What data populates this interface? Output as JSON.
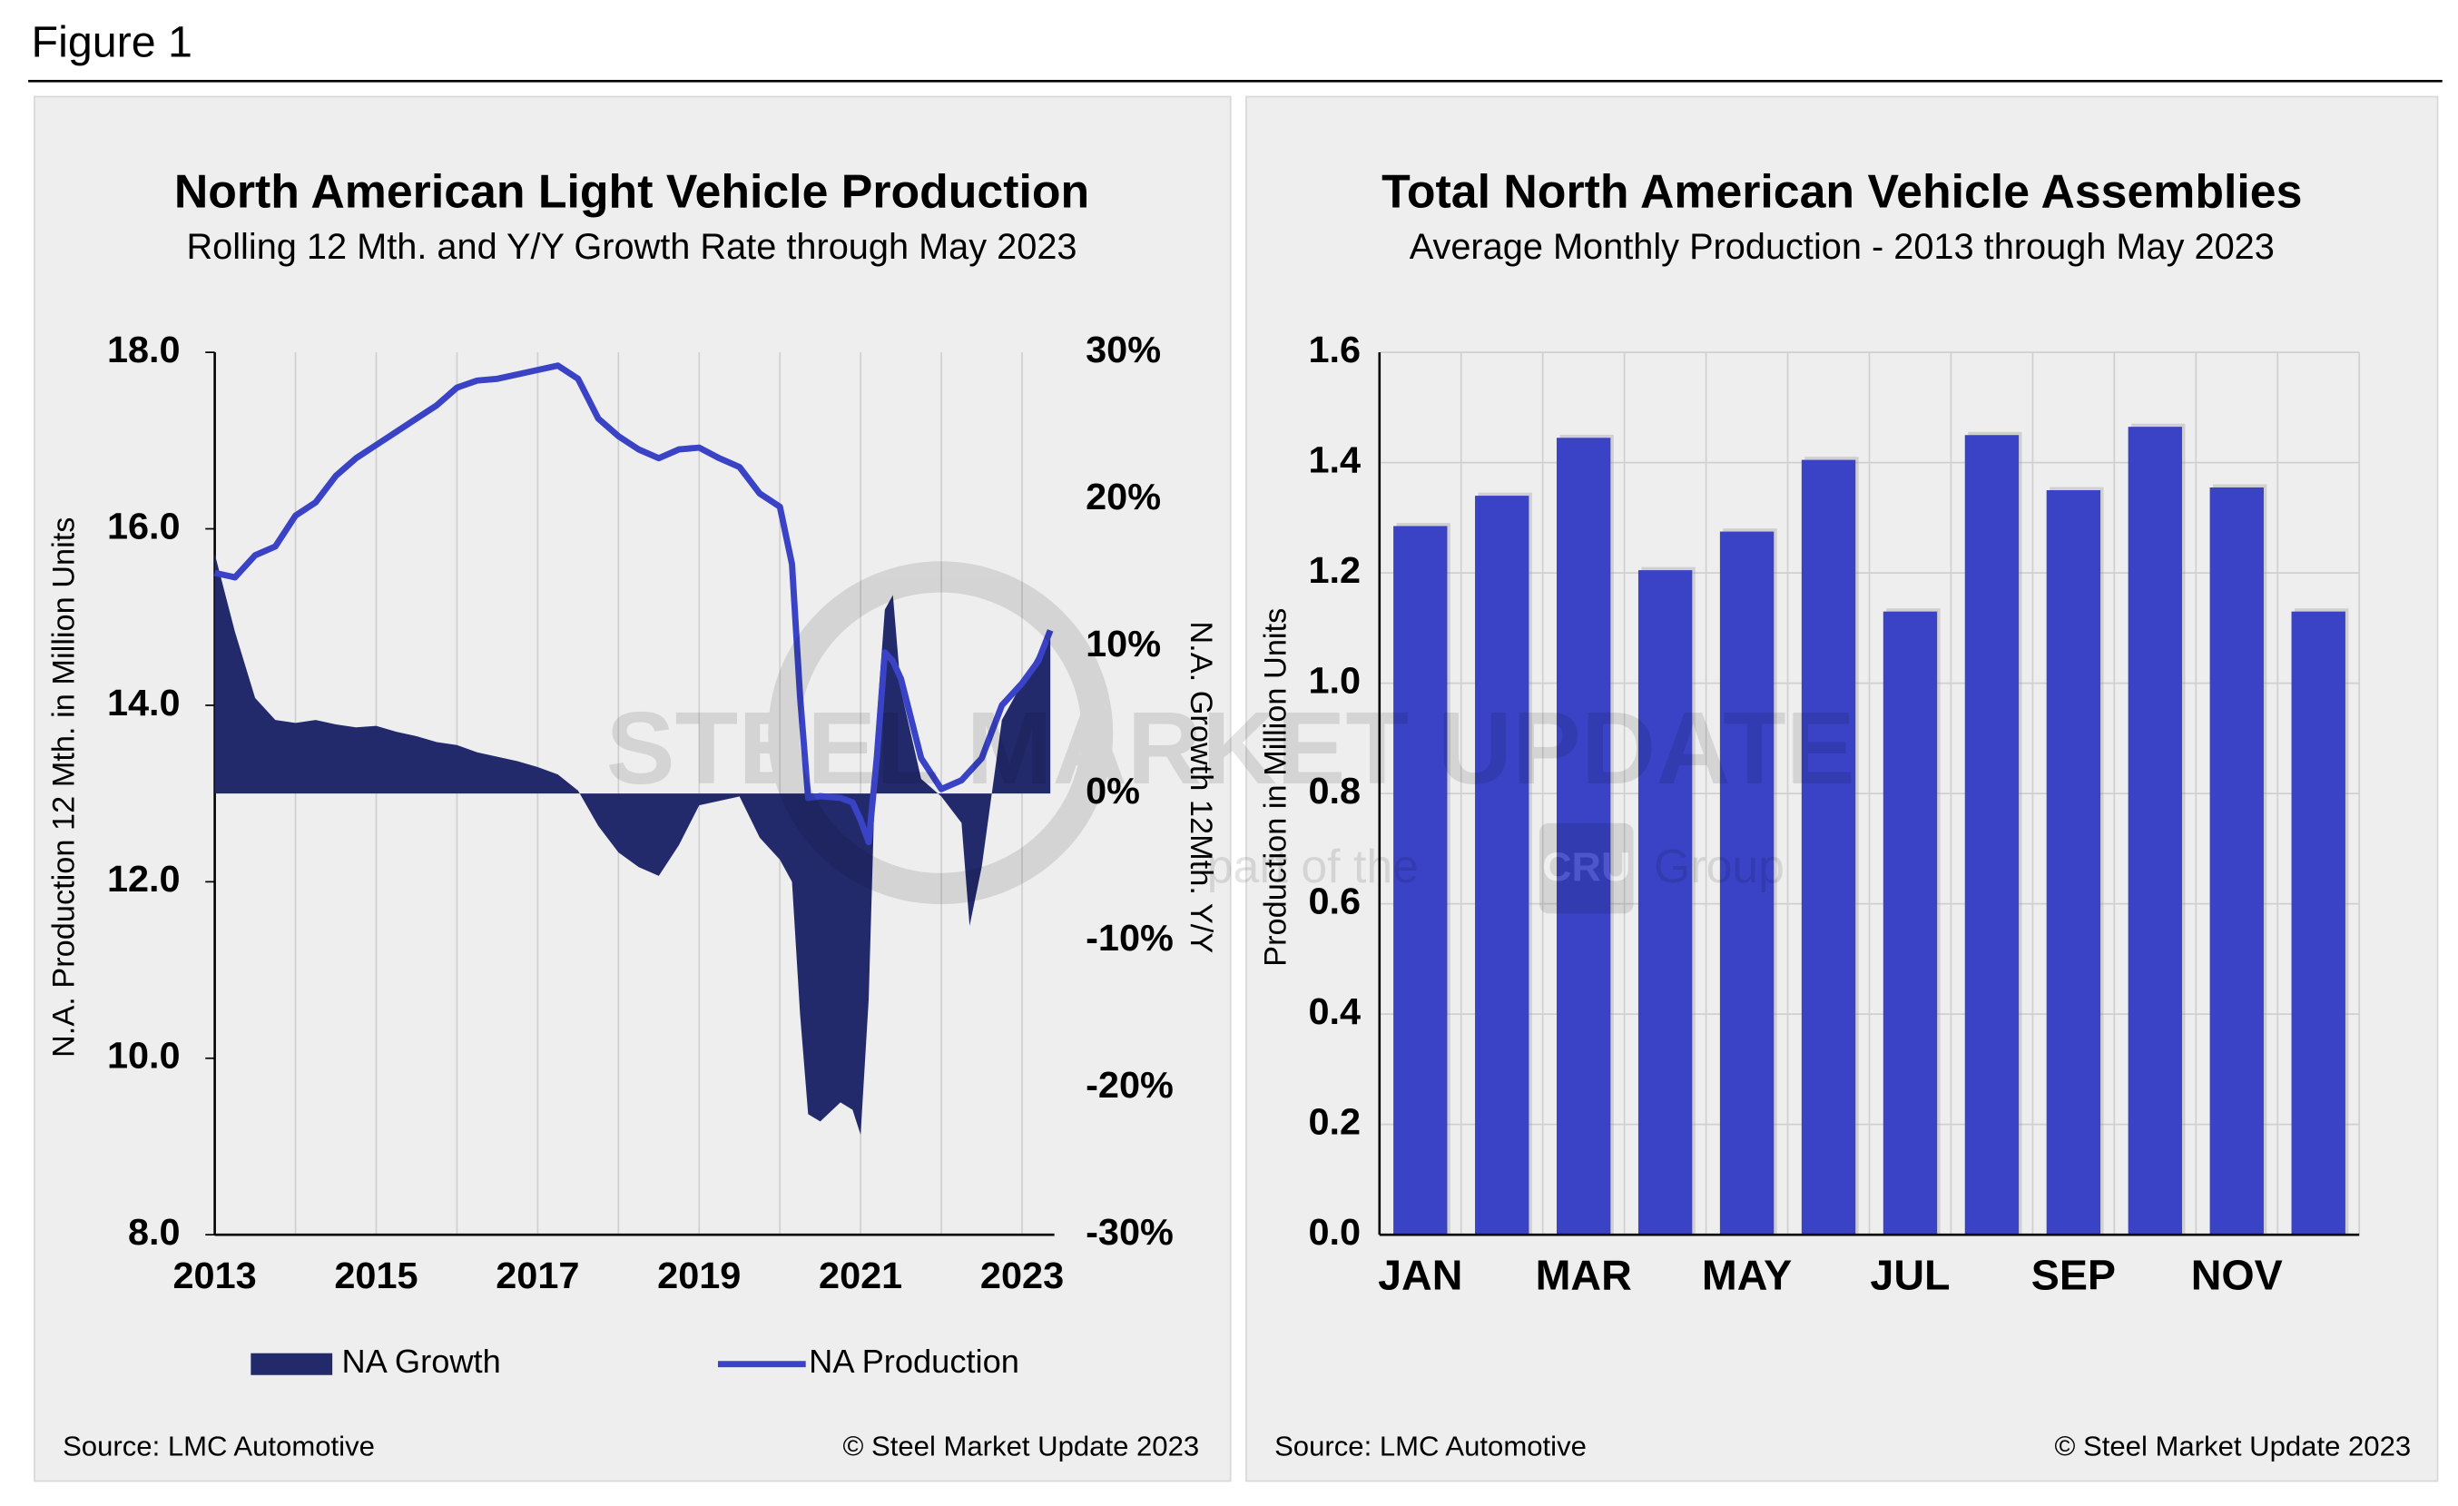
{
  "header": {
    "figure": "Figure 1"
  },
  "watermark": {
    "title": "STEEL MARKET UPDATE",
    "prefix": "part of the",
    "brand": "CRU",
    "suffix": "Group"
  },
  "chart_data": [
    {
      "type": "line",
      "title": "North American Light Vehicle Production",
      "subtitle": "Rolling 12 Mth. and Y/Y Growth Rate through May 2023",
      "y_label": "N.A. Production 12 Mth. in Million Units",
      "y2_label": "N.A. Growth 12Mth. Y/Y",
      "source": "Source: LMC Automotive",
      "copyright": "© Steel Market Update 2023",
      "x": [
        2013.0,
        2013.25,
        2013.5,
        2013.75,
        2014.0,
        2014.25,
        2014.5,
        2014.75,
        2015.0,
        2015.25,
        2015.5,
        2015.75,
        2016.0,
        2016.25,
        2016.5,
        2016.75,
        2017.0,
        2017.25,
        2017.5,
        2017.75,
        2018.0,
        2018.25,
        2018.5,
        2018.75,
        2019.0,
        2019.25,
        2019.5,
        2019.75,
        2020.0,
        2020.15,
        2020.25,
        2020.35,
        2020.5,
        2020.75,
        2020.9,
        2021.0,
        2021.1,
        2021.2,
        2021.3,
        2021.4,
        2021.5,
        2021.75,
        2022.0,
        2022.25,
        2022.35,
        2022.5,
        2022.75,
        2023.0,
        2023.2,
        2023.35
      ],
      "xlim": [
        2013,
        2023.4
      ],
      "xticks": [
        2013,
        2015,
        2017,
        2019,
        2021,
        2023
      ],
      "xminor": [
        2014,
        2016,
        2018,
        2020,
        2022
      ],
      "ylim": [
        8,
        18
      ],
      "yticks": [
        {
          "value": 8,
          "label": "8.0"
        },
        {
          "value": 10,
          "label": "10.0"
        },
        {
          "value": 12,
          "label": "12.0"
        },
        {
          "value": 14,
          "label": "14.0"
        },
        {
          "value": 16,
          "label": "16.0"
        },
        {
          "value": 18,
          "label": "18.0"
        }
      ],
      "y2lim": [
        -30,
        30
      ],
      "y2ticks": [
        {
          "value": -30,
          "label": "-30%"
        },
        {
          "value": -20,
          "label": "-20%"
        },
        {
          "value": -10,
          "label": "-10%"
        },
        {
          "value": 0,
          "label": "0%"
        },
        {
          "value": 10,
          "label": "10%"
        },
        {
          "value": 20,
          "label": "20%"
        },
        {
          "value": 30,
          "label": "30%"
        }
      ],
      "series": [
        {
          "name": "NA Growth",
          "type": "area",
          "axis": "y2",
          "color": "#232a6c",
          "values": [
            16.3,
            11,
            6.5,
            5.0,
            4.8,
            5.0,
            4.7,
            4.5,
            4.6,
            4.2,
            3.9,
            3.5,
            3.3,
            2.8,
            2.5,
            2.2,
            1.8,
            1.3,
            0.2,
            -2.2,
            -4.0,
            -5.0,
            -5.6,
            -3.5,
            -0.8,
            -0.5,
            -0.2,
            -3.0,
            -4.5,
            -6.0,
            -15,
            -21.8,
            -22.3,
            -21.0,
            -21.5,
            -23.2,
            -14,
            5,
            12.5,
            13.5,
            7,
            1.0,
            -0.2,
            -2,
            -9.0,
            -5,
            5.0,
            7.5,
            9.5,
            10.5
          ]
        },
        {
          "name": "NA Production",
          "type": "line",
          "color": "#3a43c6",
          "values": [
            15.5,
            15.45,
            15.7,
            15.8,
            16.15,
            16.3,
            16.6,
            16.8,
            16.95,
            17.1,
            17.25,
            17.4,
            17.6,
            17.68,
            17.7,
            17.75,
            17.8,
            17.85,
            17.7,
            17.25,
            17.05,
            16.9,
            16.8,
            16.9,
            16.92,
            16.8,
            16.7,
            16.4,
            16.25,
            15.6,
            14.1,
            12.95,
            12.97,
            12.95,
            12.9,
            12.7,
            12.45,
            13.4,
            14.6,
            14.5,
            14.3,
            13.4,
            13.05,
            13.15,
            13.25,
            13.4,
            14.0,
            14.25,
            14.5,
            14.85
          ]
        }
      ]
    },
    {
      "type": "bar",
      "title": "Total North American Vehicle Assemblies",
      "subtitle": "Average Monthly Production - 2013 through May 2023",
      "y_label": "Production in Million Units",
      "source": "Source: LMC Automotive",
      "copyright": "© Steel Market Update 2023",
      "categories": [
        "JAN",
        null,
        "MAR",
        null,
        "MAY",
        null,
        "JUL",
        null,
        "SEP",
        null,
        "NOV",
        null
      ],
      "values": [
        1.285,
        1.34,
        1.445,
        1.205,
        1.275,
        1.405,
        1.13,
        1.45,
        1.35,
        1.465,
        1.355,
        1.13
      ],
      "color": "#3a43c6",
      "ylim": [
        0,
        1.6
      ],
      "yticks": [
        {
          "value": 0,
          "label": "0.0"
        },
        {
          "value": 0.2,
          "label": "0.2"
        },
        {
          "value": 0.4,
          "label": "0.4"
        },
        {
          "value": 0.6,
          "label": "0.6"
        },
        {
          "value": 0.8,
          "label": "0.8"
        },
        {
          "value": 1.0,
          "label": "1.0"
        },
        {
          "value": 1.2,
          "label": "1.2"
        },
        {
          "value": 1.4,
          "label": "1.4"
        },
        {
          "value": 1.6,
          "label": "1.6"
        }
      ],
      "grid": true
    }
  ]
}
